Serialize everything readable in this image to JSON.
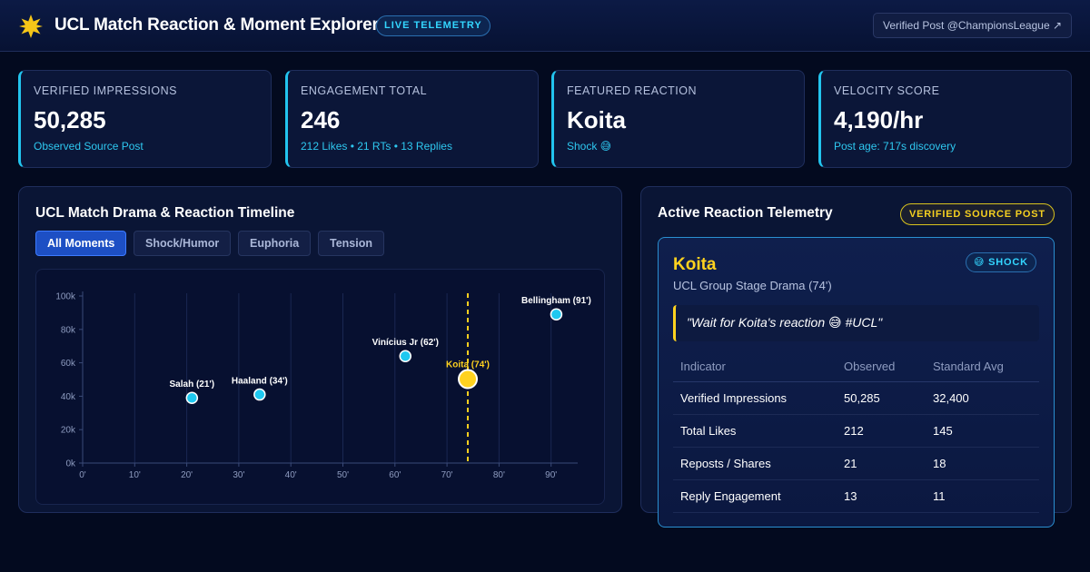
{
  "header": {
    "title": "UCL Match Reaction & Moment Explorer",
    "live_badge": "LIVE TELEMETRY",
    "verified_link": "Verified Post @ChampionsLeague ↗",
    "logo_icon": "star-burst-icon",
    "logo_color": "#f5c518"
  },
  "kpis": [
    {
      "label": "VERIFIED IMPRESSIONS",
      "value": "50,285",
      "sub": "Observed Source Post"
    },
    {
      "label": "ENGAGEMENT TOTAL",
      "value": "246",
      "sub": "212 Likes • 21 RTs • 13 Replies"
    },
    {
      "label": "FEATURED REACTION",
      "value": "Koita",
      "sub": "Shock 😅"
    },
    {
      "label": "VELOCITY SCORE",
      "value": "4,190/hr",
      "sub": "Post age: 717s discovery"
    }
  ],
  "timeline": {
    "title": "UCL Match Drama & Reaction Timeline",
    "filters": [
      "All Moments",
      "Shock/Humor",
      "Euphoria",
      "Tension"
    ],
    "active_filter": "All Moments"
  },
  "chart_data": {
    "type": "scatter",
    "x_ticks": [
      "0'",
      "10'",
      "20'",
      "30'",
      "40'",
      "50'",
      "60'",
      "70'",
      "80'",
      "90'"
    ],
    "y_ticks": [
      "0k",
      "20k",
      "40k",
      "60k",
      "80k",
      "100k"
    ],
    "xlim": [
      0,
      95
    ],
    "ylim": [
      0,
      100000
    ],
    "grid": "vertical lines",
    "highlight_line_x": 74,
    "points": [
      {
        "label": "Salah (21')",
        "x": 21,
        "y": 39000,
        "highlight": false
      },
      {
        "label": "Haaland (34')",
        "x": 34,
        "y": 41000,
        "highlight": false
      },
      {
        "label": "Vinícius Jr (62')",
        "x": 62,
        "y": 64000,
        "highlight": false
      },
      {
        "label": "Koita (74')",
        "x": 74,
        "y": 50285,
        "highlight": true
      },
      {
        "label": "Bellingham (91')",
        "x": 91,
        "y": 89000,
        "highlight": false
      }
    ],
    "colors": {
      "point": "#1ec8f0",
      "highlight": "#ffd21f"
    }
  },
  "telemetry": {
    "title": "Active Reaction Telemetry",
    "badge": "VERIFIED SOURCE POST",
    "card": {
      "name": "Koita",
      "context": "UCL Group Stage Drama (74')",
      "emotion_badge": "😅 SHOCK",
      "quote": "\"Wait for Koita's reaction 😅 #UCL\""
    },
    "table": {
      "headers": [
        "Indicator",
        "Observed",
        "Standard Avg"
      ],
      "rows": [
        [
          "Verified Impressions",
          "50,285",
          "32,400"
        ],
        [
          "Total Likes",
          "212",
          "145"
        ],
        [
          "Reposts / Shares",
          "21",
          "18"
        ],
        [
          "Reply Engagement",
          "13",
          "11"
        ]
      ]
    }
  },
  "colors": {
    "background": "#030a1f",
    "accent_cyan": "#22c4ee",
    "accent_gold": "#ffd21f"
  }
}
